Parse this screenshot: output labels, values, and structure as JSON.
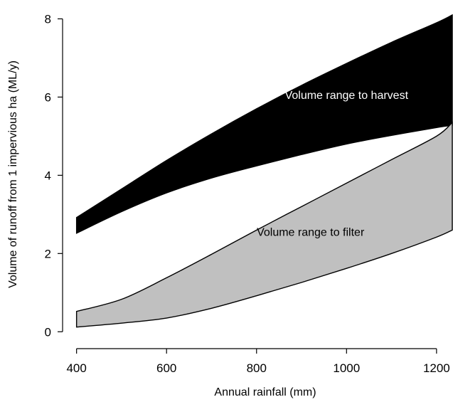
{
  "chart_data": {
    "type": "area",
    "xlabel": "Annual rainfall (mm)",
    "ylabel": "Volume of runoff from 1 impervious ha (ML/y)",
    "xlim": [
      380,
      1235
    ],
    "ylim": [
      -0.25,
      8.3
    ],
    "x_ticks": [
      400,
      600,
      800,
      1000,
      1200
    ],
    "y_ticks": [
      0,
      2,
      4,
      6,
      8
    ],
    "grid": false,
    "legend": "none",
    "series": [
      {
        "name": "Volume range to harvest",
        "fill": "#000000",
        "x": [
          400,
          500,
          600,
          700,
          800,
          900,
          1000,
          1100,
          1200,
          1235
        ],
        "upper": [
          2.92,
          3.65,
          4.38,
          5.06,
          5.7,
          6.3,
          6.86,
          7.4,
          7.9,
          8.1
        ],
        "lower": [
          2.52,
          3.07,
          3.55,
          3.93,
          4.24,
          4.53,
          4.8,
          5.02,
          5.22,
          5.28
        ]
      },
      {
        "name": "Volume range to filter",
        "fill": "#c0c0c0",
        "x": [
          400,
          500,
          600,
          700,
          800,
          900,
          1000,
          1100,
          1200,
          1235
        ],
        "upper": [
          0.52,
          0.83,
          1.38,
          1.98,
          2.6,
          3.2,
          3.8,
          4.4,
          5.0,
          5.35
        ],
        "lower": [
          0.12,
          0.22,
          0.35,
          0.6,
          0.92,
          1.26,
          1.62,
          2.0,
          2.42,
          2.6
        ]
      }
    ],
    "annotations": [
      {
        "text": "Volume range to harvest",
        "x": 1000,
        "y": 5.95,
        "color": "#ffffff"
      },
      {
        "text": "Volume range to filter",
        "x": 920,
        "y": 2.45,
        "color": "#000000"
      }
    ]
  }
}
